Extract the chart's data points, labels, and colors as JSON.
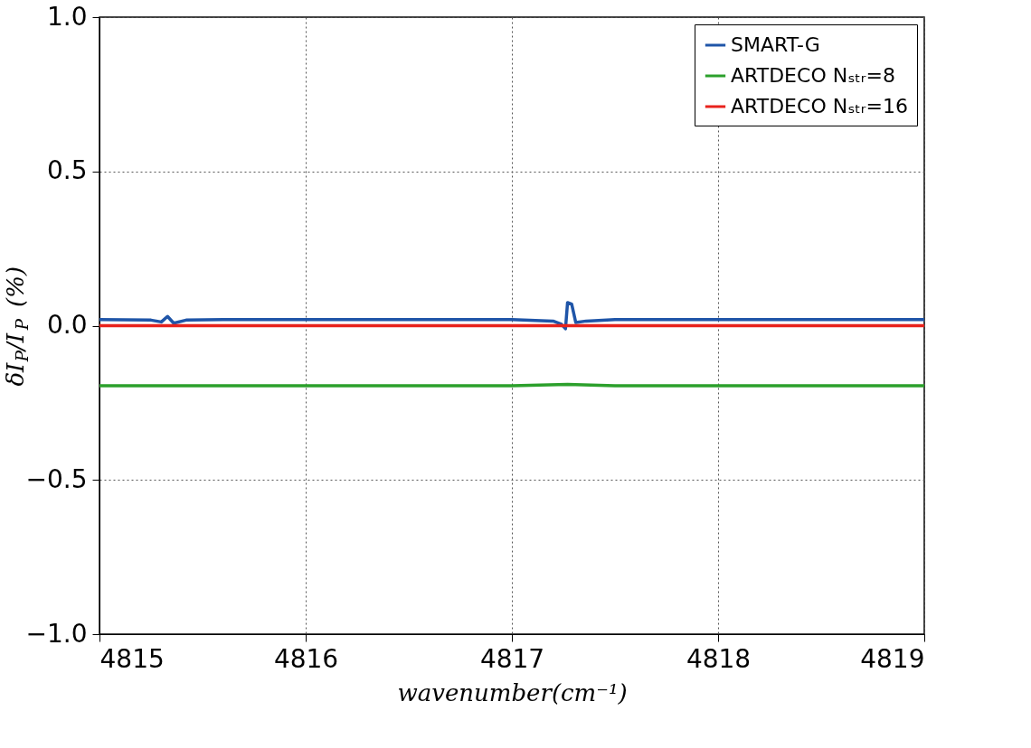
{
  "chart_data": {
    "type": "line",
    "xlabel": "wavenumber(cm⁻¹)",
    "ylabel": "δI$_{P}$/I$_{P}$ (%)",
    "xlim": [
      4815,
      4819
    ],
    "xticks": [
      4815,
      4816,
      4817,
      4818,
      4819
    ],
    "ylim": [
      -1,
      1
    ],
    "yticks": [
      {
        "value": -1,
        "label": "−1.0"
      },
      {
        "value": -0.5,
        "label": "−0.5"
      },
      {
        "value": 0,
        "label": "0.0"
      },
      {
        "value": 0.5,
        "label": "0.5"
      },
      {
        "value": 1,
        "label": "1.0"
      }
    ],
    "grid": true,
    "legend": "top right",
    "line_style": "solid",
    "marker": "none",
    "series": [
      {
        "name": "SMART-G",
        "color": "#1f55a8",
        "x": [
          4815,
          4815.25,
          4815.3,
          4815.33,
          4815.36,
          4815.42,
          4815.6,
          4816,
          4816.5,
          4817,
          4817.2,
          4817.24,
          4817.26,
          4817.27,
          4817.29,
          4817.31,
          4817.36,
          4817.5,
          4818,
          4818.5,
          4819
        ],
        "values": [
          0.02,
          0.018,
          0.012,
          0.03,
          0.008,
          0.018,
          0.02,
          0.02,
          0.02,
          0.02,
          0.015,
          0.005,
          -0.01,
          0.075,
          0.07,
          0.01,
          0.015,
          0.02,
          0.02,
          0.02,
          0.02
        ]
      },
      {
        "name": "ARTDECO Nₛₜᵣ=8",
        "color": "#2ca02c",
        "x": [
          4815,
          4816,
          4817,
          4817.27,
          4817.5,
          4818,
          4819
        ],
        "values": [
          -0.195,
          -0.195,
          -0.195,
          -0.19,
          -0.195,
          -0.195,
          -0.195
        ]
      },
      {
        "name": "ARTDECO Nₛₜᵣ=16",
        "color": "#e8221c",
        "x": [
          4815,
          4819
        ],
        "values": [
          0,
          0
        ]
      }
    ]
  }
}
